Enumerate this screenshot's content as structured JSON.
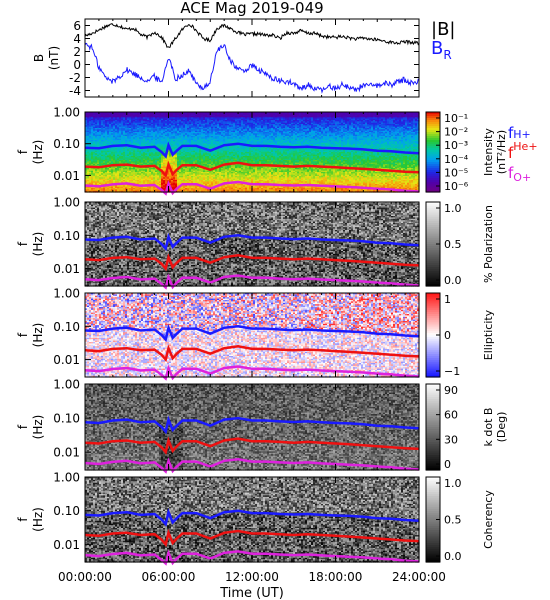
{
  "chart_data": {
    "title": "ACE Mag 2019-049",
    "xlabel": "Time (UT)",
    "xticks": [
      "00:00:00",
      "06:00:00",
      "12:00:00",
      "18:00:00",
      "24:00:00"
    ],
    "xlim_hours": [
      0,
      24
    ],
    "panels": [
      {
        "id": "bfield",
        "type": "line",
        "ylabel": "B",
        "yunit": "(nT)",
        "ylim": [
          -5,
          7
        ],
        "yticks": [
          "6",
          "4",
          "2",
          "0",
          "-2",
          "-4"
        ],
        "ytick_values": [
          6,
          4,
          2,
          0,
          -2,
          -4
        ],
        "legend": [
          {
            "label": "|B|",
            "color": "#000000"
          },
          {
            "label": "B",
            "sub": "R",
            "color": "#1a1aff"
          }
        ],
        "series": [
          {
            "name": "|B|",
            "color": "#000000",
            "x": [
              0,
              0.5,
              1,
              1.5,
              2,
              2.5,
              3,
              3.5,
              4,
              4.5,
              5,
              5.5,
              6,
              6.5,
              7,
              7.5,
              8,
              8.5,
              9,
              9.5,
              10,
              10.5,
              11,
              11.5,
              12,
              12.5,
              13,
              13.5,
              14,
              14.5,
              15,
              15.5,
              16,
              16.5,
              17,
              17.5,
              18,
              18.5,
              19,
              19.5,
              20,
              20.5,
              21,
              21.5,
              22,
              22.5,
              23,
              23.5,
              24
            ],
            "y": [
              4.4,
              4.8,
              5.3,
              5.9,
              6.2,
              5.9,
              5.4,
              5.6,
              4.6,
              4.2,
              5.0,
              4.2,
              2.5,
              4.0,
              5.4,
              6.3,
              5.2,
              4.0,
              3.7,
              5.6,
              6.0,
              5.5,
              4.9,
              4.6,
              4.7,
              4.7,
              4.5,
              4.5,
              4.0,
              4.9,
              4.8,
              5.2,
              4.8,
              4.8,
              4.4,
              4.2,
              4.2,
              4.3,
              4.1,
              3.9,
              4.1,
              3.9,
              3.8,
              3.6,
              3.4,
              3.3,
              3.5,
              3.4,
              3.3
            ]
          },
          {
            "name": "B_R",
            "color": "#1a1aff",
            "x": [
              0,
              0.5,
              1,
              1.5,
              2,
              2.5,
              3,
              3.5,
              4,
              4.5,
              5,
              5.5,
              6,
              6.5,
              7,
              7.5,
              8,
              8.5,
              9,
              9.5,
              10,
              10.5,
              11,
              11.5,
              12,
              12.5,
              13,
              13.5,
              14,
              14.5,
              15,
              15.5,
              16,
              16.5,
              17,
              17.5,
              18,
              18.5,
              19,
              19.5,
              20,
              20.5,
              21,
              21.5,
              22,
              22.5,
              23,
              23.5,
              24
            ],
            "y": [
              3.2,
              2.6,
              -0.4,
              -2.1,
              -2.6,
              -1.8,
              -0.8,
              -1.4,
              -2.0,
              -2.5,
              -1.8,
              -2.8,
              1.2,
              -2.2,
              -1.6,
              -1.0,
              -3.0,
              -3.6,
              -2.7,
              2.3,
              2.8,
              0.5,
              -0.8,
              -0.9,
              -0.2,
              -0.9,
              -1.5,
              -2.1,
              -2.6,
              -2.6,
              -3.0,
              -3.8,
              -3.1,
              -3.7,
              -4.0,
              -3.4,
              -3.6,
              -3.1,
              -3.5,
              -3.9,
              -3.1,
              -3.3,
              -3.3,
              -2.9,
              -3.1,
              -2.6,
              -2.3,
              -2.9,
              -2.6
            ]
          }
        ]
      },
      {
        "id": "intensity",
        "type": "heatmap",
        "ylabel": "f",
        "yunit": "(Hz)",
        "ylim": [
          0.003,
          1.0
        ],
        "yticks": [
          "1.00",
          "0.10",
          "0.01"
        ],
        "colorbar": {
          "label": "Intensity",
          "unit": "(nT²/Hz)",
          "ticks": [
            "10⁻¹",
            "10⁻²",
            "10⁻³",
            "10⁻⁴",
            "10⁻⁵",
            "10⁻⁶"
          ],
          "colormap": "rainbow"
        },
        "legend": [
          {
            "label": "f",
            "sub": "H+",
            "color": "#1a1aff"
          },
          {
            "label": "f",
            "sub": "He+",
            "color": "#ee1111"
          },
          {
            "label": "f",
            "sub": "O+",
            "color": "#dd22dd"
          }
        ]
      },
      {
        "id": "polarization",
        "type": "heatmap",
        "ylabel": "f",
        "yunit": "(Hz)",
        "ylim": [
          0.003,
          1.0
        ],
        "yticks": [
          "1.00",
          "0.10",
          "0.01"
        ],
        "colorbar": {
          "label": "% Polarization",
          "ticks": [
            "1.0",
            "0.5",
            "0.0"
          ],
          "colormap": "gray"
        }
      },
      {
        "id": "ellipticity",
        "type": "heatmap",
        "ylabel": "f",
        "yunit": "(Hz)",
        "ylim": [
          0.003,
          1.0
        ],
        "yticks": [
          "1.00",
          "0.10",
          "0.01"
        ],
        "colorbar": {
          "label": "Ellipticity",
          "ticks": [
            "1",
            "0",
            "−1"
          ],
          "colormap": "bwr"
        }
      },
      {
        "id": "kdotb",
        "type": "heatmap",
        "ylabel": "f",
        "yunit": "(Hz)",
        "ylim": [
          0.003,
          1.0
        ],
        "yticks": [
          "1.00",
          "0.10",
          "0.01"
        ],
        "colorbar": {
          "label": "k dot B",
          "unit": "(Deg)",
          "ticks": [
            "90",
            "60",
            "30",
            "0"
          ],
          "colormap": "gray"
        }
      },
      {
        "id": "coherency",
        "type": "heatmap",
        "ylabel": "f",
        "yunit": "(Hz)",
        "ylim": [
          0.003,
          1.0
        ],
        "yticks": [
          "1.00",
          "0.10",
          "0.01"
        ],
        "colorbar": {
          "label": "Coherency",
          "ticks": [
            "1.0",
            "0.5",
            "0.0"
          ],
          "colormap": "gray"
        }
      }
    ],
    "gyrofrequency_lines": {
      "x": [
        0,
        1,
        2,
        3,
        4,
        5,
        5.5,
        5.8,
        6,
        6.3,
        6.6,
        7,
        8,
        9,
        10,
        11,
        12,
        13,
        14,
        15,
        16,
        17,
        18,
        19,
        20,
        21,
        22,
        23,
        24
      ],
      "fH": [
        0.075,
        0.072,
        0.085,
        0.09,
        0.075,
        0.08,
        0.055,
        0.04,
        0.09,
        0.045,
        0.06,
        0.085,
        0.085,
        0.06,
        0.09,
        0.1,
        0.085,
        0.085,
        0.08,
        0.077,
        0.08,
        0.075,
        0.072,
        0.07,
        0.066,
        0.06,
        0.058,
        0.053,
        0.05
      ],
      "fHe": [
        0.019,
        0.018,
        0.021,
        0.022,
        0.019,
        0.02,
        0.014,
        0.01,
        0.022,
        0.011,
        0.015,
        0.021,
        0.021,
        0.015,
        0.022,
        0.025,
        0.021,
        0.021,
        0.02,
        0.019,
        0.02,
        0.019,
        0.018,
        0.017,
        0.016,
        0.015,
        0.014,
        0.013,
        0.0125
      ],
      "fO": [
        0.0048,
        0.0045,
        0.0052,
        0.0056,
        0.0047,
        0.005,
        0.0035,
        0.0027,
        0.0055,
        0.0028,
        0.0038,
        0.0053,
        0.0053,
        0.0038,
        0.0056,
        0.0062,
        0.0053,
        0.0053,
        0.005,
        0.0048,
        0.005,
        0.0047,
        0.0045,
        0.0043,
        0.0041,
        0.0038,
        0.0036,
        0.0033,
        0.0031
      ]
    }
  }
}
